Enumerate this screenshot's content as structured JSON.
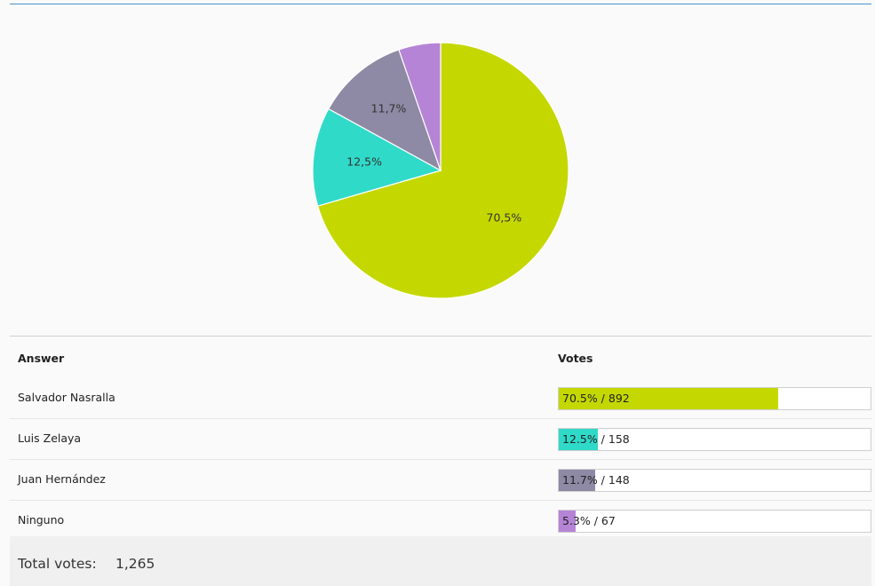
{
  "chart_data": {
    "type": "pie",
    "title": "",
    "slices": [
      {
        "label": "Salvador Nasralla",
        "value": 892,
        "percent_label": "70,5%",
        "color": "#c4d800"
      },
      {
        "label": "Luis Zelaya",
        "value": 158,
        "percent_label": "12,5%",
        "color": "#30dac9"
      },
      {
        "label": "Juan Hernández",
        "value": 148,
        "percent_label": "11,7%",
        "color": "#8e89a4"
      },
      {
        "label": "Ninguno",
        "value": 67,
        "percent_label": "",
        "color": "#b684d6"
      }
    ]
  },
  "table": {
    "header_answer": "Answer",
    "header_votes": "Votes",
    "rows": [
      {
        "name": "Salvador Nasralla",
        "votes": 892,
        "percent": 70.5,
        "bar_label": "70.5% / 892",
        "color": "#c4d800"
      },
      {
        "name": "Luis Zelaya",
        "votes": 158,
        "percent": 12.5,
        "bar_label": "12.5% / 158",
        "color": "#30dac9"
      },
      {
        "name": "Juan Hernández",
        "votes": 148,
        "percent": 11.7,
        "bar_label": "11.7% / 148",
        "color": "#8e89a4"
      },
      {
        "name": "Ninguno",
        "votes": 67,
        "percent": 5.3,
        "bar_label": "5.3% / 67",
        "color": "#b684d6"
      }
    ]
  },
  "total": {
    "label": "Total votes:",
    "value": "1,265"
  }
}
